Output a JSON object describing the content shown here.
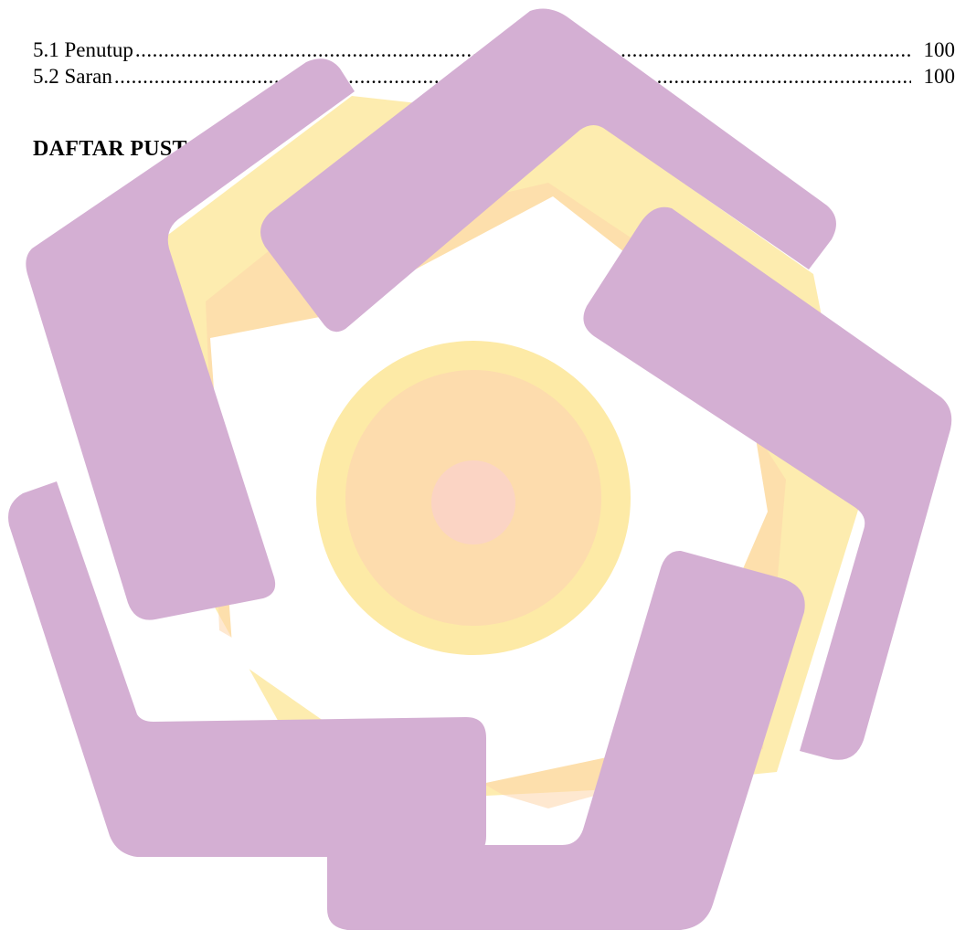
{
  "toc": {
    "entries": [
      {
        "label": "5.1 Penutup",
        "page": "100"
      },
      {
        "label": "5.2 Saran",
        "page": "100"
      }
    ],
    "heading": "DAFTAR PUSTAKA"
  },
  "watermark": {
    "name": "university-logo-watermark",
    "colors": {
      "purple": "#d4afd3",
      "yellow": "#fdeaa6",
      "orange": "#fdd6a9",
      "peach": "#fbd4c4"
    }
  }
}
